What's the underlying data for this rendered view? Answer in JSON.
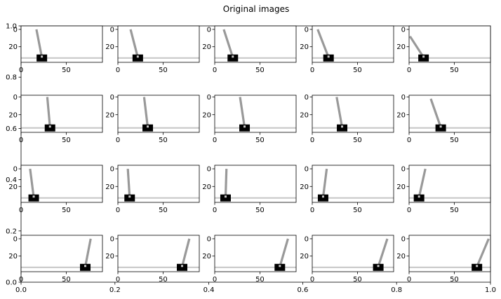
{
  "title": "Original images",
  "outer_axis": {
    "xlim": [
      0,
      1
    ],
    "ylim": [
      0,
      1
    ],
    "x_ticks": [
      "0.0",
      "0.2",
      "0.4",
      "0.6",
      "0.8",
      "1.0"
    ],
    "y_ticks": [
      "0.0",
      "0.2",
      "0.4",
      "0.6",
      "0.8",
      "1.0"
    ]
  },
  "chart_data": {
    "type": "image-grid",
    "title": "Original images",
    "rows": 4,
    "cols": 5,
    "cart_colors": {
      "track": "#c8c8c8",
      "cart": "#000000",
      "pole": "#999999"
    },
    "subplots": [
      {
        "row": 0,
        "xlim": [
          0,
          90
        ],
        "ylim": [
          38,
          -4
        ],
        "x_ticks": [
          0,
          50
        ],
        "x_tick_labels": [
          "0",
          "50"
        ],
        "y_ticks": [
          0,
          20
        ],
        "y_tick_labels": [
          "0",
          "20"
        ],
        "track_y": 33,
        "frames": [
          {
            "cart_x": 23,
            "pole_top": [
              17,
              0
            ]
          },
          {
            "cart_x": 22,
            "pole_top": [
              14,
              0
            ]
          },
          {
            "cart_x": 20,
            "pole_top": [
              10,
              0
            ]
          },
          {
            "cart_x": 18,
            "pole_top": [
              6,
              0
            ]
          },
          {
            "cart_x": 16,
            "pole_top": [
              1,
              8
            ]
          }
        ]
      },
      {
        "row": 1,
        "xlim": [
          0,
          90
        ],
        "ylim": [
          40,
          -2
        ],
        "x_ticks": [
          0,
          50
        ],
        "x_tick_labels": [
          "0",
          "50"
        ],
        "y_ticks": [
          0,
          20
        ],
        "y_tick_labels": [
          "0",
          "20"
        ],
        "track_y": 35,
        "frames": [
          {
            "cart_x": 32,
            "pole_top": [
              29,
              0
            ]
          },
          {
            "cart_x": 33,
            "pole_top": [
              29,
              0
            ]
          },
          {
            "cart_x": 33,
            "pole_top": [
              28,
              0
            ]
          },
          {
            "cart_x": 33,
            "pole_top": [
              27,
              0
            ]
          },
          {
            "cart_x": 35,
            "pole_top": [
              24,
              2
            ]
          }
        ]
      },
      {
        "row": 2,
        "xlim": [
          0,
          90
        ],
        "ylim": [
          38,
          -4
        ],
        "x_ticks": [
          0,
          50
        ],
        "x_tick_labels": [
          "0",
          "50"
        ],
        "y_ticks": [
          0,
          20
        ],
        "y_tick_labels": [
          "0",
          "20"
        ],
        "track_y": 33,
        "frames": [
          {
            "cart_x": 14,
            "pole_top": [
              10,
              0
            ]
          },
          {
            "cart_x": 13,
            "pole_top": [
              11,
              0
            ]
          },
          {
            "cart_x": 12,
            "pole_top": [
              13,
              0
            ]
          },
          {
            "cart_x": 12,
            "pole_top": [
              16,
              0
            ]
          },
          {
            "cart_x": 11,
            "pole_top": [
              18,
              0
            ]
          }
        ]
      },
      {
        "row": 3,
        "xlim": [
          0,
          90
        ],
        "ylim": [
          38,
          -4
        ],
        "x_ticks": [
          0,
          50
        ],
        "x_tick_labels": [
          "0",
          "50"
        ],
        "y_ticks": [
          0,
          20
        ],
        "y_tick_labels": [
          "0",
          "20"
        ],
        "track_y": 33,
        "frames": [
          {
            "cart_x": 71,
            "pole_top": [
              77,
              0
            ]
          },
          {
            "cart_x": 71,
            "pole_top": [
              79,
              0
            ]
          },
          {
            "cart_x": 72,
            "pole_top": [
              81,
              0
            ]
          },
          {
            "cart_x": 73,
            "pole_top": [
              83,
              0
            ]
          },
          {
            "cart_x": 75,
            "pole_top": [
              88,
              0
            ]
          }
        ]
      }
    ]
  }
}
